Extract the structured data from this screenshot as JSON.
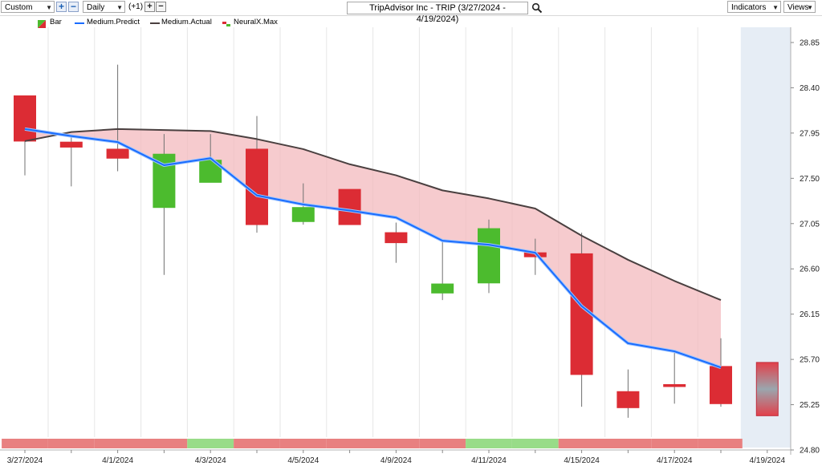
{
  "toolbar": {
    "range_label": "Custom",
    "interval_label": "Daily",
    "step_label": "(+1)",
    "title": "TripAdvisor Inc - TRIP (3/27/2024 - 4/19/2024)",
    "indicators_label": "Indicators",
    "views_label": "Views"
  },
  "legend": {
    "bar": "Bar",
    "predict": "Medium.Predict",
    "actual": "Medium.Actual",
    "neural": "NeuralX.Max"
  },
  "colors": {
    "up": "#4cbb2e",
    "down": "#dc2c34",
    "predict": "#1a6cff",
    "actual": "#4a4040",
    "band": "#f3b9bd",
    "forecast_bg": "#e6edf5",
    "signal_down": "#e88080",
    "signal_up": "#98dc88"
  },
  "chart_data": {
    "type": "candlestick",
    "title": "TripAdvisor Inc - TRIP (3/27/2024 - 4/19/2024)",
    "ylim": [
      24.8,
      29.0
    ],
    "yticks": [
      "28.85",
      "28.40",
      "27.95",
      "27.50",
      "27.05",
      "26.60",
      "26.15",
      "25.70",
      "25.25",
      "24.80"
    ],
    "ytick_values": [
      28.85,
      28.4,
      27.95,
      27.5,
      27.05,
      26.6,
      26.15,
      25.7,
      25.25,
      24.8
    ],
    "xtick_labels": [
      {
        "i": 0,
        "label": "3/27/2024"
      },
      {
        "i": 2,
        "label": "4/1/2024"
      },
      {
        "i": 4,
        "label": "4/3/2024"
      },
      {
        "i": 6,
        "label": "4/5/2024"
      },
      {
        "i": 8,
        "label": "4/9/2024"
      },
      {
        "i": 10,
        "label": "4/11/2024"
      },
      {
        "i": 12,
        "label": "4/15/2024"
      },
      {
        "i": 14,
        "label": "4/17/2024"
      },
      {
        "i": 16,
        "label": "4/19/2024"
      }
    ],
    "candles": [
      {
        "open": 28.32,
        "close": 27.87,
        "high": 28.32,
        "low": 27.53
      },
      {
        "open": 27.86,
        "close": 27.81,
        "high": 27.93,
        "low": 27.42
      },
      {
        "open": 27.79,
        "close": 27.7,
        "high": 28.63,
        "low": 27.57
      },
      {
        "open": 27.21,
        "close": 27.74,
        "high": 27.94,
        "low": 26.54
      },
      {
        "open": 27.46,
        "close": 27.68,
        "high": 27.94,
        "low": 27.46
      },
      {
        "open": 27.79,
        "close": 27.04,
        "high": 28.12,
        "low": 26.96
      },
      {
        "open": 27.07,
        "close": 27.21,
        "high": 27.45,
        "low": 27.04
      },
      {
        "open": 27.39,
        "close": 27.04,
        "high": 27.39,
        "low": 27.04
      },
      {
        "open": 26.96,
        "close": 26.86,
        "high": 27.06,
        "low": 26.66
      },
      {
        "open": 26.36,
        "close": 26.45,
        "high": 26.88,
        "low": 26.29
      },
      {
        "open": 26.46,
        "close": 27.0,
        "high": 27.09,
        "low": 26.36
      },
      {
        "open": 26.76,
        "close": 26.72,
        "high": 26.9,
        "low": 26.54
      },
      {
        "open": 26.75,
        "close": 25.55,
        "high": 26.96,
        "low": 25.23
      },
      {
        "open": 25.38,
        "close": 25.22,
        "high": 25.6,
        "low": 25.12
      },
      {
        "open": 25.45,
        "close": 25.43,
        "high": 25.78,
        "low": 25.26
      },
      {
        "open": 25.63,
        "close": 25.26,
        "high": 25.91,
        "low": 25.23
      },
      {
        "open": 25.67,
        "close": 25.14,
        "high": 25.67,
        "low": 25.14,
        "forecast": true
      }
    ],
    "series": [
      {
        "name": "Medium.Predict",
        "values": [
          27.99,
          27.92,
          27.86,
          27.63,
          27.7,
          27.33,
          27.24,
          27.18,
          27.11,
          26.88,
          26.84,
          26.76,
          26.23,
          25.86,
          25.78,
          25.62,
          null
        ]
      },
      {
        "name": "Medium.Actual",
        "values": [
          27.87,
          27.96,
          27.99,
          27.98,
          27.97,
          27.89,
          27.79,
          27.64,
          27.53,
          27.38,
          27.3,
          27.2,
          26.93,
          26.69,
          26.48,
          26.29,
          null
        ]
      }
    ],
    "signal_bar": [
      "down",
      "down",
      "down",
      "down",
      "up",
      "down",
      "down",
      "down",
      "down",
      "down",
      "up",
      "up",
      "down",
      "down",
      "down",
      "down",
      "down"
    ]
  }
}
